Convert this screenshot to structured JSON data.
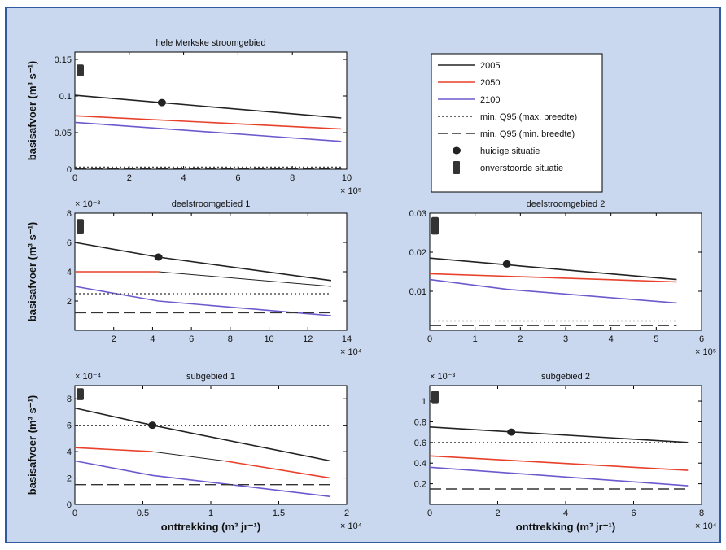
{
  "colors": {
    "frame_bg": "#c9d8ee",
    "frame_border": "#2f5aa0",
    "y2005": "#222222",
    "y2050": "#e8402a",
    "y2100": "#6a5acd"
  },
  "chart_data": [
    {
      "type": "line",
      "title": "hele Merkske stroomgebied",
      "ylabel": "basisafvoer (m³ s⁻¹)",
      "xlabel": "",
      "x_multiplier": "× 10⁵",
      "y_multiplier": "",
      "xlim": [
        0,
        10
      ],
      "ylim": [
        0,
        0.16
      ],
      "xticks": [
        "0",
        "2",
        "4",
        "6",
        "8",
        "10"
      ],
      "xtick_vals": [
        0,
        2,
        4,
        6,
        8,
        10
      ],
      "yticks": [
        "0",
        "0.05",
        "0.1",
        "0.15"
      ],
      "ytick_vals": [
        0,
        0.05,
        0.1,
        0.15
      ],
      "series": [
        {
          "name": "2005",
          "style": "solid",
          "color": "#222222",
          "x": [
            0,
            9.8
          ],
          "y": [
            0.101,
            0.07
          ]
        },
        {
          "name": "2050",
          "style": "solid",
          "color": "#e8402a",
          "x": [
            0,
            9.8
          ],
          "y": [
            0.073,
            0.055
          ]
        },
        {
          "name": "2100",
          "style": "solid",
          "color": "#6a5acd",
          "x": [
            0,
            9.8
          ],
          "y": [
            0.064,
            0.038
          ]
        },
        {
          "name": "min. Q95 (max. breedte)",
          "style": "dotted",
          "color": "#333333",
          "x": [
            0,
            9.8
          ],
          "y": [
            0.003,
            0.003
          ]
        },
        {
          "name": "min. Q95 (min. breedte)",
          "style": "dashed",
          "color": "#333333",
          "x": [
            0,
            9.8
          ],
          "y": [
            0.001,
            0.001
          ]
        }
      ],
      "current": {
        "x": 3.2,
        "y": 0.091
      },
      "undisturbed": {
        "y0": 0.127,
        "y1": 0.143
      }
    },
    {
      "type": "line",
      "title": "deelstroomgebied 1",
      "ylabel": "basisafvoer (m³ s⁻¹)",
      "xlabel": "",
      "x_multiplier": "× 10⁴",
      "y_multiplier": "× 10⁻³",
      "xlim": [
        0,
        14
      ],
      "ylim": [
        0,
        8
      ],
      "xticks": [
        "2",
        "4",
        "6",
        "8",
        "10",
        "12",
        "14"
      ],
      "xtick_vals": [
        2,
        4,
        6,
        8,
        10,
        12,
        14
      ],
      "yticks": [
        "2",
        "4",
        "6",
        "8"
      ],
      "ytick_vals": [
        2,
        4,
        6,
        8
      ],
      "series": [
        {
          "name": "2005",
          "style": "solid",
          "color": "#222222",
          "x": [
            0,
            4.3,
            13.2
          ],
          "y": [
            6.0,
            5.0,
            3.4
          ]
        },
        {
          "name": "2050",
          "style": "solid",
          "color": "#e8402a",
          "x": [
            0,
            4.3
          ],
          "y": [
            4.0,
            4.0
          ]
        },
        {
          "name": "2050 (voortzetting)",
          "style": "thin",
          "color": "#222222",
          "x": [
            4.3,
            13.2
          ],
          "y": [
            4.0,
            3.0
          ]
        },
        {
          "name": "2100",
          "style": "solid",
          "color": "#6a5acd",
          "x": [
            0,
            4.3,
            13.2
          ],
          "y": [
            3.0,
            2.0,
            1.0
          ]
        },
        {
          "name": "min. Q95 (max. breedte)",
          "style": "dotted",
          "color": "#333333",
          "x": [
            0,
            13.2
          ],
          "y": [
            2.5,
            2.5
          ]
        },
        {
          "name": "min. Q95 (min. breedte)",
          "style": "dashed",
          "color": "#333333",
          "x": [
            0,
            13.2
          ],
          "y": [
            1.2,
            1.2
          ]
        }
      ],
      "current": {
        "x": 4.3,
        "y": 5.0
      },
      "undisturbed": {
        "y0": 6.6,
        "y1": 7.6
      }
    },
    {
      "type": "line",
      "title": "deelstroomgebied 2",
      "ylabel": "",
      "xlabel": "",
      "x_multiplier": "× 10⁵",
      "y_multiplier": "",
      "xlim": [
        0,
        6
      ],
      "ylim": [
        0,
        0.03
      ],
      "xticks": [
        "0",
        "1",
        "2",
        "3",
        "4",
        "5",
        "6"
      ],
      "xtick_vals": [
        0,
        1,
        2,
        3,
        4,
        5,
        6
      ],
      "yticks": [
        "0.01",
        "0.02",
        "0.03"
      ],
      "ytick_vals": [
        0.01,
        0.02,
        0.03
      ],
      "series": [
        {
          "name": "2005",
          "style": "solid",
          "color": "#222222",
          "x": [
            0,
            5.45
          ],
          "y": [
            0.0185,
            0.013
          ]
        },
        {
          "name": "2050",
          "style": "solid",
          "color": "#e8402a",
          "x": [
            0,
            5.45
          ],
          "y": [
            0.0145,
            0.0124
          ]
        },
        {
          "name": "2100",
          "style": "solid",
          "color": "#6a5acd",
          "x": [
            0,
            1.7,
            5.45
          ],
          "y": [
            0.013,
            0.0105,
            0.007
          ]
        },
        {
          "name": "min. Q95 (max. breedte)",
          "style": "dotted",
          "color": "#333333",
          "x": [
            0,
            5.45
          ],
          "y": [
            0.0024,
            0.0024
          ]
        },
        {
          "name": "min. Q95 (min. breedte)",
          "style": "dashed",
          "color": "#333333",
          "x": [
            0,
            5.45
          ],
          "y": [
            0.0012,
            0.0012
          ]
        }
      ],
      "current": {
        "x": 1.7,
        "y": 0.017
      },
      "undisturbed": {
        "y0": 0.0245,
        "y1": 0.029
      }
    },
    {
      "type": "line",
      "title": "subgebied 1",
      "ylabel": "basisafvoer (m³ s⁻¹)",
      "xlabel": "onttrekking (m³ jr⁻¹)",
      "x_multiplier": "× 10⁴",
      "y_multiplier": "× 10⁻⁴",
      "xlim": [
        0,
        2
      ],
      "ylim": [
        0,
        9
      ],
      "xticks": [
        "0",
        "0.5",
        "1",
        "1.5",
        "2"
      ],
      "xtick_vals": [
        0,
        0.5,
        1,
        1.5,
        2
      ],
      "yticks": [
        "0",
        "2",
        "4",
        "6",
        "8"
      ],
      "ytick_vals": [
        0,
        2,
        4,
        6,
        8
      ],
      "series": [
        {
          "name": "2005",
          "style": "solid",
          "color": "#222222",
          "x": [
            0,
            0.57,
            1.88
          ],
          "y": [
            7.3,
            6.0,
            3.3
          ]
        },
        {
          "name": "2050",
          "style": "solid",
          "color": "#e8402a",
          "x": [
            0,
            0.57
          ],
          "y": [
            4.3,
            4.0
          ]
        },
        {
          "name": "2050 (voortzetting)",
          "style": "thin",
          "color": "#222222",
          "x": [
            0.57,
            1.1
          ],
          "y": [
            4.0,
            3.3
          ]
        },
        {
          "name": "2050 (rood)",
          "style": "solid",
          "color": "#e8402a",
          "x": [
            1.1,
            1.88
          ],
          "y": [
            3.3,
            2.0
          ]
        },
        {
          "name": "2100",
          "style": "solid",
          "color": "#6a5acd",
          "x": [
            0,
            0.57,
            1.88
          ],
          "y": [
            3.3,
            2.2,
            0.6
          ]
        },
        {
          "name": "min. Q95 (max. breedte)",
          "style": "dotted",
          "color": "#333333",
          "x": [
            0,
            1.88
          ],
          "y": [
            6.0,
            6.0
          ]
        },
        {
          "name": "min. Q95 (min. breedte)",
          "style": "dashed",
          "color": "#333333",
          "x": [
            0,
            1.88
          ],
          "y": [
            1.5,
            1.5
          ]
        }
      ],
      "current": {
        "x": 0.57,
        "y": 6.0
      },
      "undisturbed": {
        "y0": 7.9,
        "y1": 8.8
      }
    },
    {
      "type": "line",
      "title": "subgebied 2",
      "ylabel": "",
      "xlabel": "onttrekking (m³ jr⁻¹)",
      "x_multiplier": "× 10⁴",
      "y_multiplier": "× 10⁻³",
      "xlim": [
        0,
        8
      ],
      "ylim": [
        0,
        1.15
      ],
      "xticks": [
        "0",
        "2",
        "4",
        "6",
        "8"
      ],
      "xtick_vals": [
        0,
        2,
        4,
        6,
        8
      ],
      "yticks": [
        "0.2",
        "0.4",
        "0.6",
        "0.8",
        "1"
      ],
      "ytick_vals": [
        0.2,
        0.4,
        0.6,
        0.8,
        1.0
      ],
      "series": [
        {
          "name": "2005",
          "style": "solid",
          "color": "#222222",
          "x": [
            0,
            7.6
          ],
          "y": [
            0.75,
            0.6
          ]
        },
        {
          "name": "2050",
          "style": "solid",
          "color": "#e8402a",
          "x": [
            0,
            7.6
          ],
          "y": [
            0.47,
            0.33
          ]
        },
        {
          "name": "2100",
          "style": "solid",
          "color": "#6a5acd",
          "x": [
            0,
            7.6
          ],
          "y": [
            0.36,
            0.18
          ]
        },
        {
          "name": "min. Q95 (max. breedte)",
          "style": "dotted",
          "color": "#333333",
          "x": [
            0,
            7.6
          ],
          "y": [
            0.6,
            0.6
          ]
        },
        {
          "name": "min. Q95 (min. breedte)",
          "style": "dashed",
          "color": "#333333",
          "x": [
            0,
            7.6
          ],
          "y": [
            0.15,
            0.15
          ]
        }
      ],
      "current": {
        "x": 2.4,
        "y": 0.7
      },
      "undisturbed": {
        "y0": 0.98,
        "y1": 1.1
      }
    }
  ],
  "legend": {
    "items": [
      {
        "label": "2005",
        "kind": "line",
        "style": "solid",
        "color": "#222222"
      },
      {
        "label": "2050",
        "kind": "line",
        "style": "solid",
        "color": "#e8402a"
      },
      {
        "label": "2100",
        "kind": "line",
        "style": "solid",
        "color": "#6a5acd"
      },
      {
        "label": "min. Q95 (max. breedte)",
        "kind": "line",
        "style": "dotted",
        "color": "#333333"
      },
      {
        "label": "min. Q95 (min. breedte)",
        "kind": "line",
        "style": "dashed",
        "color": "#333333"
      },
      {
        "label": "huidige situatie",
        "kind": "dot",
        "color": "#222222"
      },
      {
        "label": "onverstoorde situatie",
        "kind": "bar",
        "color": "#333333"
      }
    ]
  }
}
